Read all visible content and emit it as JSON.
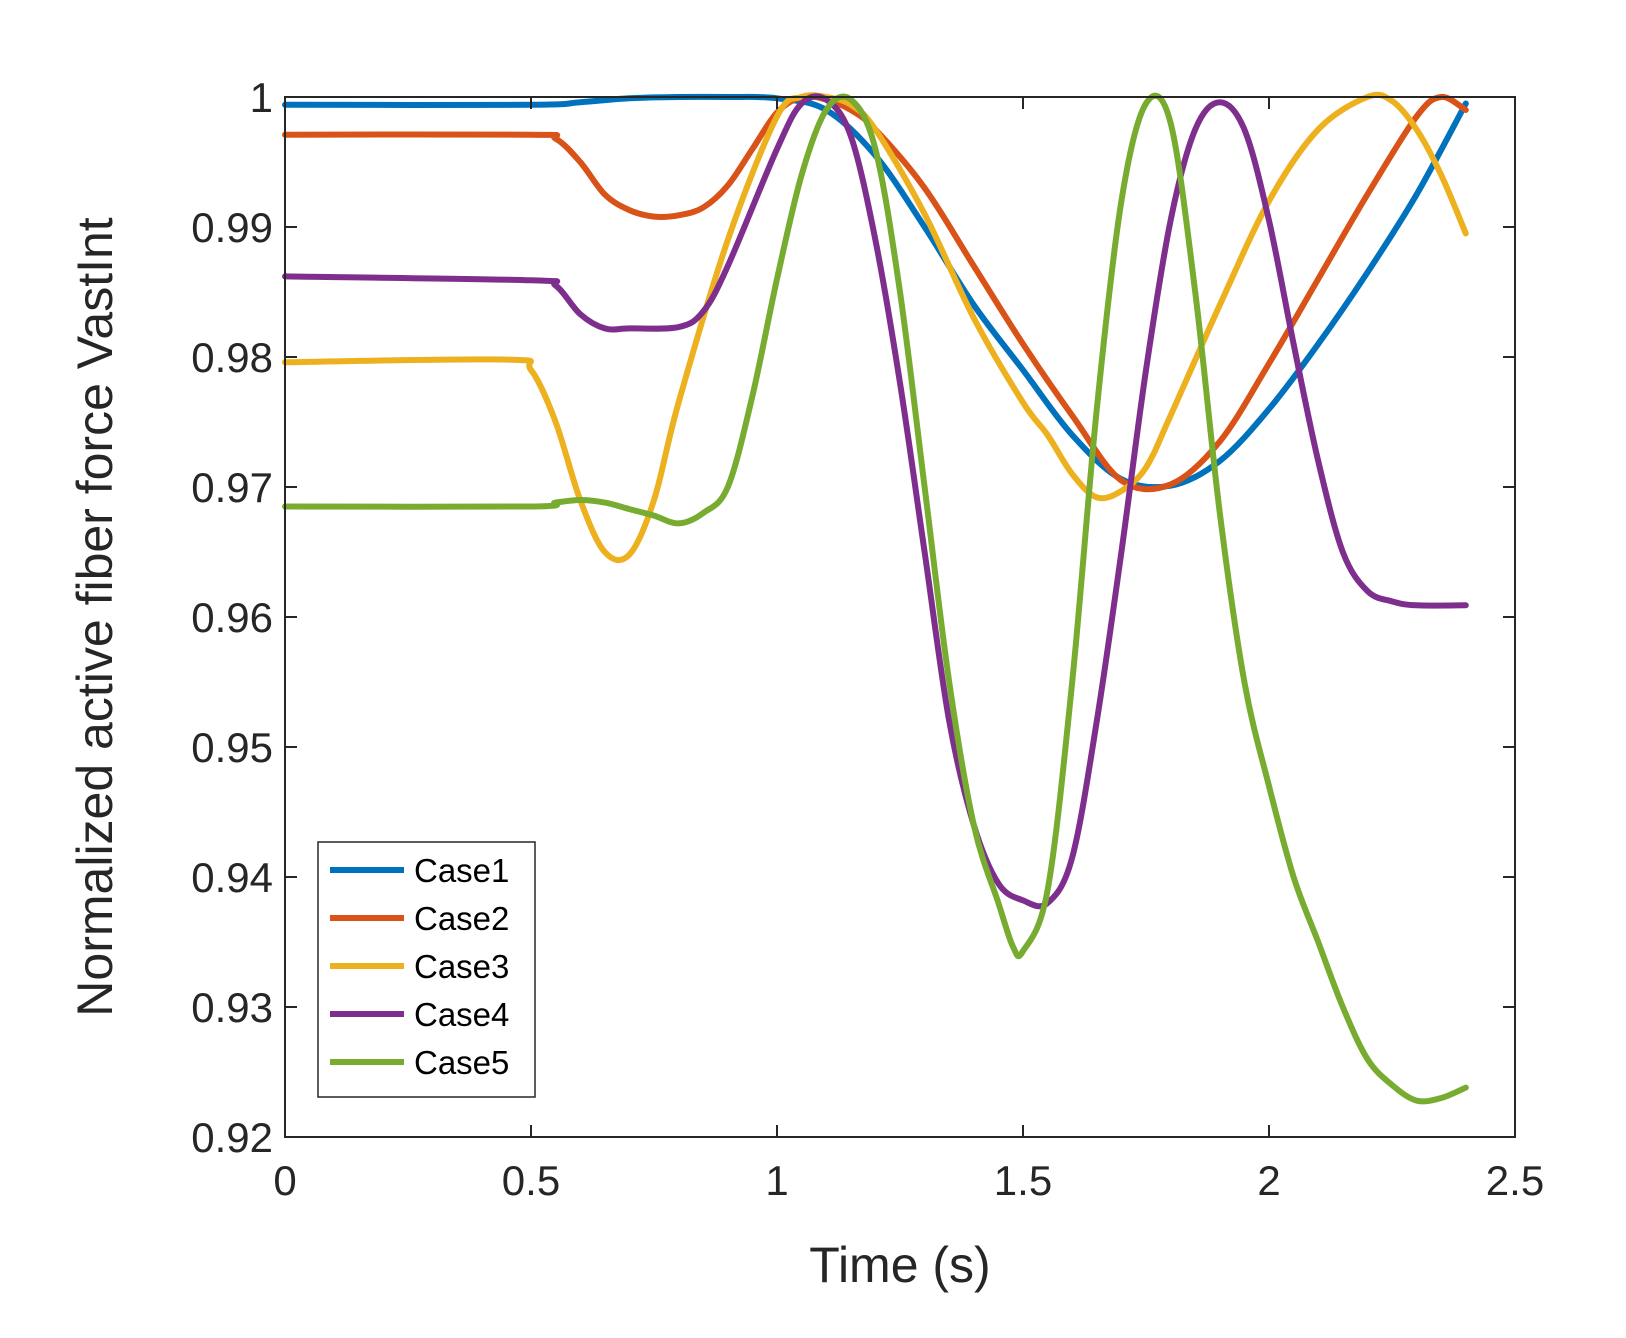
{
  "chart_data": {
    "type": "line",
    "title": "",
    "xlabel": "Time (s)",
    "ylabel": "Normalized active fiber force  VastInt",
    "xlim": [
      0,
      2.5
    ],
    "ylim": [
      0.92,
      1.0
    ],
    "xticks": [
      0,
      0.5,
      1,
      1.5,
      2,
      2.5
    ],
    "xtick_labels": [
      "0",
      "0.5",
      "1",
      "1.5",
      "2",
      "2.5"
    ],
    "yticks": [
      0.92,
      0.93,
      0.94,
      0.95,
      0.96,
      0.97,
      0.98,
      0.99,
      1.0
    ],
    "ytick_labels": [
      "0.92",
      "0.93",
      "0.94",
      "0.95",
      "0.96",
      "0.97",
      "0.98",
      "0.99",
      "1"
    ],
    "grid": false,
    "legend_position": "bottom-left",
    "series": [
      {
        "name": "Case1",
        "color": "#0072BD",
        "x": [
          0,
          0.5,
          0.6,
          0.7,
          0.8,
          0.9,
          1.0,
          1.1,
          1.2,
          1.3,
          1.4,
          1.5,
          1.6,
          1.7,
          1.8,
          1.9,
          2.0,
          2.1,
          2.2,
          2.3,
          2.4
        ],
        "y": [
          0.9994,
          0.9994,
          0.9996,
          0.9999,
          1.0,
          1.0,
          0.9999,
          0.999,
          0.9955,
          0.99,
          0.984,
          0.979,
          0.974,
          0.9706,
          0.9701,
          0.972,
          0.976,
          0.981,
          0.9865,
          0.9925,
          0.9995
        ]
      },
      {
        "name": "Case2",
        "color": "#D95319",
        "x": [
          0,
          0.5,
          0.55,
          0.6,
          0.65,
          0.7,
          0.75,
          0.8,
          0.85,
          0.9,
          0.95,
          1.0,
          1.05,
          1.1,
          1.15,
          1.2,
          1.3,
          1.4,
          1.5,
          1.6,
          1.7,
          1.8,
          1.9,
          2.0,
          2.1,
          2.2,
          2.3,
          2.35,
          2.4
        ],
        "y": [
          0.9971,
          0.9971,
          0.9968,
          0.995,
          0.9925,
          0.9913,
          0.9908,
          0.9909,
          0.9915,
          0.9932,
          0.996,
          0.9988,
          1.0,
          0.9998,
          0.999,
          0.9975,
          0.993,
          0.987,
          0.981,
          0.9755,
          0.9705,
          0.9702,
          0.9735,
          0.9795,
          0.986,
          0.9925,
          0.9985,
          1.0,
          0.999
        ]
      },
      {
        "name": "Case3",
        "color": "#EDB120",
        "x": [
          0,
          0.45,
          0.5,
          0.55,
          0.6,
          0.65,
          0.7,
          0.75,
          0.8,
          0.9,
          1.0,
          1.05,
          1.1,
          1.15,
          1.2,
          1.3,
          1.4,
          1.5,
          1.55,
          1.6,
          1.65,
          1.7,
          1.75,
          1.8,
          1.9,
          2.0,
          2.1,
          2.2,
          2.25,
          2.3,
          2.35,
          2.4
        ],
        "y": [
          0.9796,
          0.9798,
          0.979,
          0.975,
          0.969,
          0.965,
          0.9648,
          0.969,
          0.9765,
          0.989,
          0.9985,
          1.0,
          1.0,
          0.9994,
          0.9975,
          0.991,
          0.983,
          0.9765,
          0.974,
          0.971,
          0.9692,
          0.9697,
          0.9715,
          0.9755,
          0.984,
          0.992,
          0.9975,
          1.0,
          0.9997,
          0.9975,
          0.994,
          0.9895
        ]
      },
      {
        "name": "Case4",
        "color": "#7E2F8E",
        "x": [
          0,
          0.5,
          0.55,
          0.6,
          0.65,
          0.7,
          0.8,
          0.85,
          0.9,
          1.0,
          1.05,
          1.1,
          1.15,
          1.2,
          1.25,
          1.3,
          1.35,
          1.4,
          1.45,
          1.5,
          1.55,
          1.6,
          1.65,
          1.7,
          1.75,
          1.8,
          1.85,
          1.9,
          1.95,
          2.0,
          2.05,
          2.1,
          2.15,
          2.2,
          2.25,
          2.3,
          2.4
        ],
        "y": [
          0.9862,
          0.9859,
          0.9855,
          0.9833,
          0.9822,
          0.9822,
          0.9823,
          0.9835,
          0.987,
          0.996,
          0.9995,
          0.9998,
          0.997,
          0.989,
          0.978,
          0.965,
          0.952,
          0.944,
          0.9395,
          0.9382,
          0.938,
          0.9415,
          0.952,
          0.965,
          0.979,
          0.9905,
          0.9975,
          0.9996,
          0.9975,
          0.9905,
          0.981,
          0.972,
          0.965,
          0.962,
          0.9612,
          0.9609,
          0.9609
        ]
      },
      {
        "name": "Case5",
        "color": "#77AC30",
        "x": [
          0,
          0.5,
          0.55,
          0.6,
          0.65,
          0.7,
          0.75,
          0.8,
          0.85,
          0.9,
          0.95,
          1.0,
          1.05,
          1.1,
          1.15,
          1.2,
          1.25,
          1.3,
          1.35,
          1.4,
          1.45,
          1.48,
          1.5,
          1.55,
          1.6,
          1.65,
          1.7,
          1.75,
          1.8,
          1.85,
          1.9,
          1.95,
          2.0,
          2.05,
          2.1,
          2.15,
          2.2,
          2.25,
          2.3,
          2.35,
          2.4
        ],
        "y": [
          0.9685,
          0.9685,
          0.9688,
          0.969,
          0.9688,
          0.9683,
          0.9678,
          0.9672,
          0.968,
          0.97,
          0.977,
          0.986,
          0.994,
          0.999,
          0.9998,
          0.996,
          0.985,
          0.97,
          0.955,
          0.944,
          0.938,
          0.9346,
          0.9343,
          0.939,
          0.955,
          0.976,
          0.992,
          0.9995,
          0.998,
          0.985,
          0.968,
          0.955,
          0.947,
          0.94,
          0.935,
          0.93,
          0.926,
          0.924,
          0.9228,
          0.923,
          0.9238
        ]
      }
    ]
  }
}
